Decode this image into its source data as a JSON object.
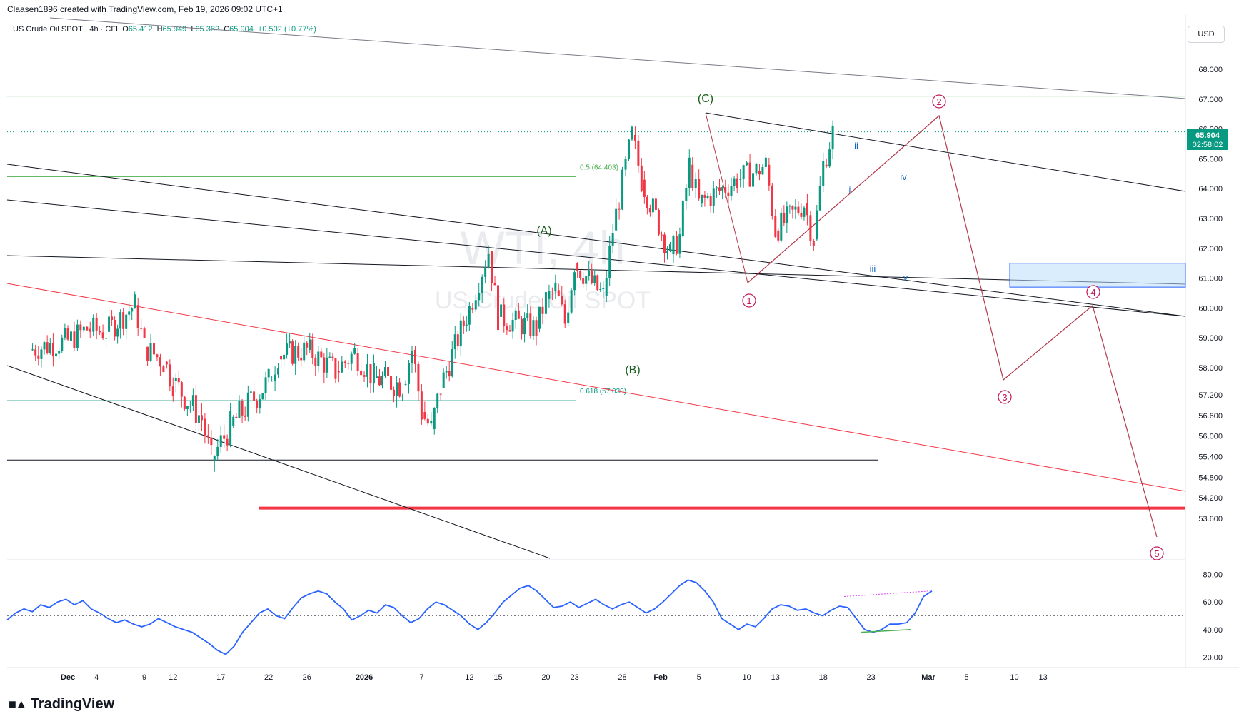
{
  "header": {
    "attribution": "Claasen1896 created with TradingView.com, Feb 19, 2026 09:02 UTC+1"
  },
  "legend": {
    "symbol": "US Crude Oil SPOT · 4h · CFI",
    "open_label": "O",
    "open": "65.412",
    "high_label": "H",
    "high": "65.949",
    "low_label": "L",
    "low": "65.382",
    "close_label": "C",
    "close": "65.904",
    "change": "+0.502 (+0.77%)"
  },
  "currency": "USD",
  "watermark": {
    "line1": "WTI, 4h",
    "line2": "US Crude Oil SPOT"
  },
  "price_tag": {
    "price": "65.904",
    "countdown": "02:58:02"
  },
  "brand": "TradingView",
  "chart_data": {
    "type": "candlestick",
    "price_axis": {
      "ticks": [
        "68.000",
        "67.000",
        "66.000",
        "65.000",
        "64.000",
        "63.000",
        "62.000",
        "61.000",
        "60.000",
        "59.000",
        "58.000",
        "57.200",
        "56.600",
        "56.000",
        "55.400",
        "54.800",
        "54.200",
        "53.600"
      ],
      "ylim": [
        53.4,
        69.0
      ]
    },
    "time_axis": {
      "labels": [
        "Dec",
        "4",
        "9",
        "12",
        "17",
        "22",
        "26",
        "2026",
        "7",
        "12",
        "15",
        "20",
        "23",
        "28",
        "Feb",
        "5",
        "10",
        "13",
        "18",
        "23",
        "Mar",
        "5",
        "10",
        "13"
      ]
    },
    "price_path": [
      [
        "Nov 27",
        58.6
      ],
      [
        "Dec 1",
        58.9
      ],
      [
        "Dec 3",
        59.3
      ],
      [
        "Dec 5",
        59.2
      ],
      [
        "Dec 8",
        60.1
      ],
      [
        "Dec 9",
        58.7
      ],
      [
        "Dec 11",
        58.2
      ],
      [
        "Dec 12",
        57.6
      ],
      [
        "Dec 15",
        56.5
      ],
      [
        "Dec 16",
        55.3
      ],
      [
        "Dec 18",
        56.3
      ],
      [
        "Dec 22",
        57.6
      ],
      [
        "Dec 23",
        58.4
      ],
      [
        "Dec 26",
        58.6
      ],
      [
        "Dec 29",
        57.9
      ],
      [
        "Dec 31",
        58.5
      ],
      [
        "Jan 2",
        57.7
      ],
      [
        "Jan 5",
        57.5
      ],
      [
        "Jan 6",
        58.6
      ],
      [
        "Jan 7",
        56.7
      ],
      [
        "Jan 8",
        56.2
      ],
      [
        "Jan 9",
        57.4
      ],
      [
        "Jan 12",
        60.0
      ],
      [
        "Jan 14",
        61.9
      ],
      [
        "Jan 15",
        59.7
      ],
      [
        "Jan 19",
        59.3
      ],
      [
        "Jan 20",
        60.3
      ],
      [
        "Jan 21",
        60.6
      ],
      [
        "Jan 22",
        59.5
      ],
      [
        "Jan 23",
        61.5
      ],
      [
        "Jan 26",
        60.4
      ],
      [
        "Jan 27",
        62.6
      ],
      [
        "Jan 29",
        65.8
      ],
      [
        "Jan 30",
        64.3
      ],
      [
        "Feb 2",
        61.8
      ],
      [
        "Feb 3",
        62.4
      ],
      [
        "Feb 4",
        64.8
      ],
      [
        "Feb 5",
        63.5
      ],
      [
        "Feb 9",
        64.3
      ],
      [
        "Feb 11",
        64.6
      ],
      [
        "Feb 12",
        64.8
      ],
      [
        "Feb 13",
        62.6
      ],
      [
        "Feb 16",
        63.5
      ],
      [
        "Feb 17",
        62.3
      ],
      [
        "Feb 18",
        64.8
      ],
      [
        "Feb 19",
        65.9
      ]
    ],
    "annotations": {
      "fib_levels": [
        {
          "label": "0.5 (64.403)",
          "value": 64.403
        },
        {
          "label": "0.618 (57.030)",
          "value": 57.03
        }
      ],
      "horizontal_levels": [
        67.1,
        55.3,
        53.9
      ],
      "abc_labels": [
        "(A)",
        "(B)",
        "(C)"
      ],
      "impulse_labels": [
        "1",
        "2",
        "3",
        "4",
        "5"
      ],
      "subwave_labels": [
        "i",
        "ii",
        "iii",
        "iv",
        "v"
      ],
      "target_zone": [
        60.7,
        61.5
      ]
    },
    "rsi": {
      "ticks": [
        "80.00",
        "60.00",
        "40.00",
        "20.00"
      ],
      "ylim": [
        15,
        85
      ],
      "midline": 50,
      "values": [
        47,
        52,
        55,
        53,
        58,
        56,
        60,
        62,
        58,
        61,
        55,
        52,
        48,
        45,
        47,
        44,
        42,
        44,
        48,
        45,
        42,
        40,
        38,
        34,
        30,
        25,
        22,
        28,
        38,
        45,
        52,
        55,
        50,
        48,
        56,
        63,
        66,
        68,
        66,
        60,
        55,
        47,
        50,
        54,
        52,
        58,
        56,
        50,
        45,
        48,
        55,
        60,
        58,
        54,
        50,
        44,
        40,
        45,
        52,
        60,
        65,
        70,
        72,
        68,
        62,
        56,
        57,
        60,
        56,
        59,
        62,
        58,
        55,
        58,
        60,
        56,
        52,
        55,
        60,
        66,
        72,
        76,
        74,
        68,
        60,
        48,
        44,
        40,
        44,
        42,
        48,
        55,
        58,
        57,
        54,
        55,
        52,
        50,
        54,
        57,
        56,
        48,
        40,
        38,
        40,
        44,
        44,
        45,
        52,
        64,
        68
      ]
    }
  }
}
